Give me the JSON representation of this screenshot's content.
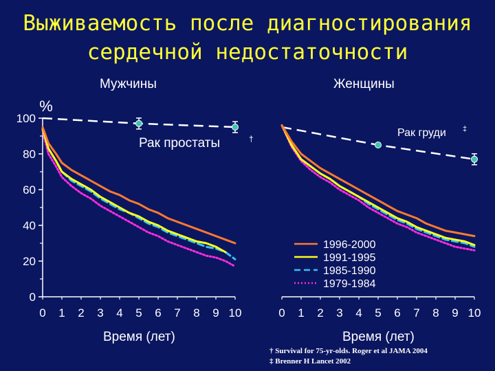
{
  "title_line1": "Выживаемость после диагностирования",
  "title_line2": "сердечной недостаточности",
  "y_unit": "%",
  "footnotes": [
    "† Survival for 75-yr-olds. Roger et al JAMA 2004",
    "‡ Brenner H Lancet 2002"
  ],
  "colors": {
    "background": "#0b1660",
    "title": "#ffff33",
    "s1996": "#ff7a2e",
    "s1991": "#ffff1a",
    "s1985": "#39c0f0",
    "s1979": "#ff2be0",
    "ref": "#ffffff",
    "ref_marker": "#3cc6b0"
  },
  "chart_data": [
    {
      "type": "line",
      "title": "Мужчины",
      "xlabel": "Время (лет)",
      "ylabel": "%",
      "xlim": [
        0,
        10
      ],
      "ylim": [
        0,
        100
      ],
      "x_ticks": [
        0,
        1,
        2,
        3,
        4,
        5,
        6,
        7,
        8,
        9,
        10
      ],
      "y_ticks": [
        0,
        20,
        40,
        60,
        80,
        100
      ],
      "reference": {
        "label": "Рак простаты",
        "sup": "†",
        "x": [
          0,
          5,
          10
        ],
        "y": [
          100,
          97,
          95
        ]
      },
      "series": [
        {
          "name": "1996-2000",
          "key": "s1996",
          "x": [
            0,
            0.3,
            0.7,
            1,
            1.5,
            2,
            2.5,
            3,
            3.5,
            4,
            4.5,
            5,
            5.5,
            6,
            6.5,
            7,
            7.5,
            8,
            8.5,
            9,
            9.5,
            10
          ],
          "y": [
            95,
            86,
            80,
            75,
            71,
            68,
            65,
            62,
            59,
            57,
            54,
            52,
            49,
            47,
            44,
            42,
            40,
            38,
            36,
            34,
            32,
            30
          ]
        },
        {
          "name": "1991-1995",
          "key": "s1991",
          "x": [
            0,
            0.3,
            0.7,
            1,
            1.5,
            2,
            2.5,
            3,
            3.5,
            4,
            4.5,
            5,
            5.5,
            6,
            6.5,
            7,
            7.5,
            8,
            8.5,
            9,
            9.5
          ],
          "y": [
            94,
            83,
            76,
            70,
            66,
            63,
            60,
            56,
            53,
            50,
            47,
            45,
            42,
            40,
            37,
            35,
            33,
            31,
            30,
            28,
            25
          ]
        },
        {
          "name": "1985-1990",
          "key": "s1985",
          "x": [
            0,
            0.3,
            0.7,
            1,
            1.5,
            2,
            2.5,
            3,
            3.5,
            4,
            4.5,
            5,
            5.5,
            6,
            6.5,
            7,
            7.5,
            8,
            8.5,
            9,
            9.5,
            10
          ],
          "y": [
            94,
            83,
            76,
            70,
            65,
            62,
            59,
            55,
            52,
            49,
            47,
            44,
            41,
            39,
            36,
            34,
            32,
            30,
            28,
            27,
            25,
            21
          ]
        },
        {
          "name": "1979-1984",
          "key": "s1979",
          "x": [
            0,
            0.3,
            0.7,
            1,
            1.5,
            2,
            2.5,
            3,
            3.5,
            4,
            4.5,
            5,
            5.5,
            6,
            6.5,
            7,
            7.5,
            8,
            8.5,
            9,
            9.5,
            10
          ],
          "y": [
            93,
            80,
            73,
            67,
            62,
            58,
            55,
            51,
            48,
            45,
            42,
            39,
            36,
            34,
            31,
            29,
            27,
            25,
            23,
            22,
            20,
            17
          ]
        }
      ]
    },
    {
      "type": "line",
      "title": "Женщины",
      "xlabel": "Время (лет)",
      "ylabel": "",
      "xlim": [
        0,
        10
      ],
      "ylim": [
        0,
        100
      ],
      "x_ticks": [
        0,
        1,
        2,
        3,
        4,
        5,
        6,
        7,
        8,
        9,
        10
      ],
      "reference": {
        "label": "Рак груди",
        "sup": "‡",
        "x": [
          0,
          5,
          10
        ],
        "y": [
          95,
          85,
          77
        ]
      },
      "legend_position": "lower-right",
      "series": [
        {
          "name": "1996-2000",
          "key": "s1996",
          "x": [
            0,
            0.5,
            1,
            1.5,
            2,
            2.5,
            3,
            3.5,
            4,
            4.5,
            5,
            5.5,
            6,
            6.5,
            7,
            7.5,
            8,
            8.5,
            9,
            9.5,
            10
          ],
          "y": [
            96,
            87,
            80,
            76,
            72,
            69,
            66,
            63,
            60,
            57,
            54,
            51,
            48,
            46,
            44,
            41,
            39,
            37,
            36,
            35,
            34
          ]
        },
        {
          "name": "1991-1995",
          "key": "s1991",
          "x": [
            0,
            0.5,
            1,
            1.5,
            2,
            2.5,
            3,
            3.5,
            4,
            4.5,
            5,
            5.5,
            6,
            6.5,
            7,
            7.5,
            8,
            8.5,
            9,
            9.5,
            10
          ],
          "y": [
            96,
            85,
            77,
            73,
            69,
            66,
            62,
            59,
            56,
            53,
            50,
            47,
            44,
            42,
            39,
            37,
            35,
            33,
            32,
            31,
            29
          ]
        },
        {
          "name": "1985-1990",
          "key": "s1985",
          "x": [
            0,
            0.5,
            1,
            1.5,
            2,
            2.5,
            3,
            3.5,
            4,
            4.5,
            5,
            5.5,
            6,
            6.5,
            7,
            7.5,
            8,
            8.5,
            9,
            9.5,
            10
          ],
          "y": [
            96,
            85,
            77,
            73,
            69,
            66,
            62,
            59,
            56,
            52,
            49,
            46,
            43,
            41,
            38,
            36,
            34,
            32,
            31,
            30,
            28
          ]
        },
        {
          "name": "1979-1984",
          "key": "s1979",
          "x": [
            0,
            0.5,
            1,
            1.5,
            2,
            2.5,
            3,
            3.5,
            4,
            4.5,
            5,
            5.5,
            6,
            6.5,
            7,
            7.5,
            8,
            8.5,
            9,
            9.5,
            10
          ],
          "y": [
            96,
            84,
            76,
            71,
            67,
            64,
            60,
            57,
            54,
            50,
            47,
            44,
            41,
            39,
            36,
            34,
            32,
            30,
            28,
            27,
            26
          ]
        }
      ]
    }
  ]
}
